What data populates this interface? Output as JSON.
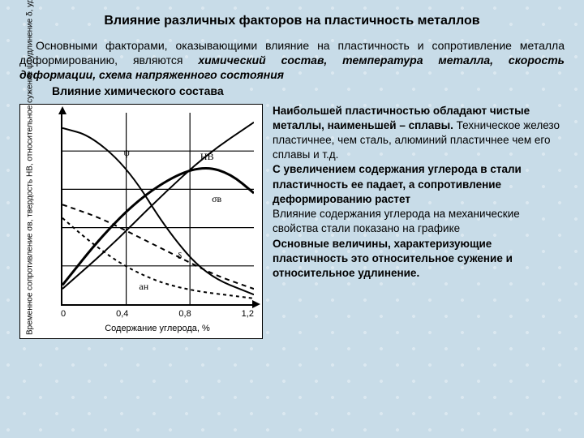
{
  "title": "Влияние различных факторов на пластичность металлов",
  "intro": {
    "lead": "Основными факторами, оказывающими влияние на пластичность и сопротивление металла деформированию, являются ",
    "em1": "химический состав, температура металла, скорость деформации, схема напряженного состояния"
  },
  "subheading": "Влияние химического состава",
  "chart": {
    "type": "multi-line",
    "background_color": "#ffffff",
    "grid_color": "#000000",
    "xlabel": "Содержание углерода, %",
    "ylabel": "Временное сопротивление σв, твердость HB, относительное сужение ψ, удлинение δ, ударная вязкость aн",
    "xlim": [
      0,
      1.2
    ],
    "ylim": [
      0,
      100
    ],
    "xticks": [
      "0",
      "0,4",
      "0,8",
      "1,2"
    ],
    "grid_v": [
      0.333,
      0.666
    ],
    "grid_h": [
      0.2,
      0.4,
      0.6,
      0.8
    ],
    "curves": {
      "psi": {
        "label": "ψ",
        "label_pos": [
          0.32,
          0.18
        ],
        "stroke": "#000",
        "width": 2,
        "dash": "",
        "points": [
          [
            0,
            0.08
          ],
          [
            0.15,
            0.12
          ],
          [
            0.35,
            0.3
          ],
          [
            0.55,
            0.62
          ],
          [
            0.75,
            0.85
          ],
          [
            1,
            0.95
          ]
        ]
      },
      "hb": {
        "label": "HB",
        "label_pos": [
          0.72,
          0.2
        ],
        "stroke": "#000",
        "width": 2,
        "dash": "",
        "points": [
          [
            0,
            0.92
          ],
          [
            0.25,
            0.7
          ],
          [
            0.5,
            0.45
          ],
          [
            0.75,
            0.22
          ],
          [
            1,
            0.05
          ]
        ]
      },
      "sigma": {
        "label": "σв",
        "label_pos": [
          0.78,
          0.42
        ],
        "stroke": "#000",
        "width": 3,
        "dash": "",
        "points": [
          [
            0,
            0.9
          ],
          [
            0.2,
            0.65
          ],
          [
            0.4,
            0.45
          ],
          [
            0.6,
            0.32
          ],
          [
            0.75,
            0.28
          ],
          [
            0.88,
            0.32
          ],
          [
            1,
            0.42
          ]
        ]
      },
      "delta": {
        "label": "δ",
        "label_pos": [
          0.6,
          0.72
        ],
        "stroke": "#000",
        "width": 2,
        "dash": "6 5",
        "points": [
          [
            0,
            0.48
          ],
          [
            0.2,
            0.55
          ],
          [
            0.4,
            0.65
          ],
          [
            0.6,
            0.75
          ],
          [
            0.8,
            0.85
          ],
          [
            1,
            0.92
          ]
        ]
      },
      "an": {
        "label": "aн",
        "label_pos": [
          0.4,
          0.88
        ],
        "stroke": "#000",
        "width": 2,
        "dash": "4 4",
        "points": [
          [
            0,
            0.55
          ],
          [
            0.15,
            0.68
          ],
          [
            0.35,
            0.82
          ],
          [
            0.6,
            0.92
          ],
          [
            1,
            0.97
          ]
        ]
      }
    }
  },
  "rhs": {
    "p1b": "Наибольшей пластичностью обладают чистые металлы, наименьшей – сплавы.",
    "p1": " Техническое железо пластичнее, чем сталь, алюминий пластичнее чем его сплавы и т.д.",
    "p2b": "С увеличением содержания углерода в стали пластичность ее падает, а сопротивление деформированию растет",
    "p3": "Влияние содержания углерода на механические свойства стали показано на графике",
    "p4b": "Основные величины, характеризующие пластичность это относительное сужение и относительное удлинение."
  }
}
